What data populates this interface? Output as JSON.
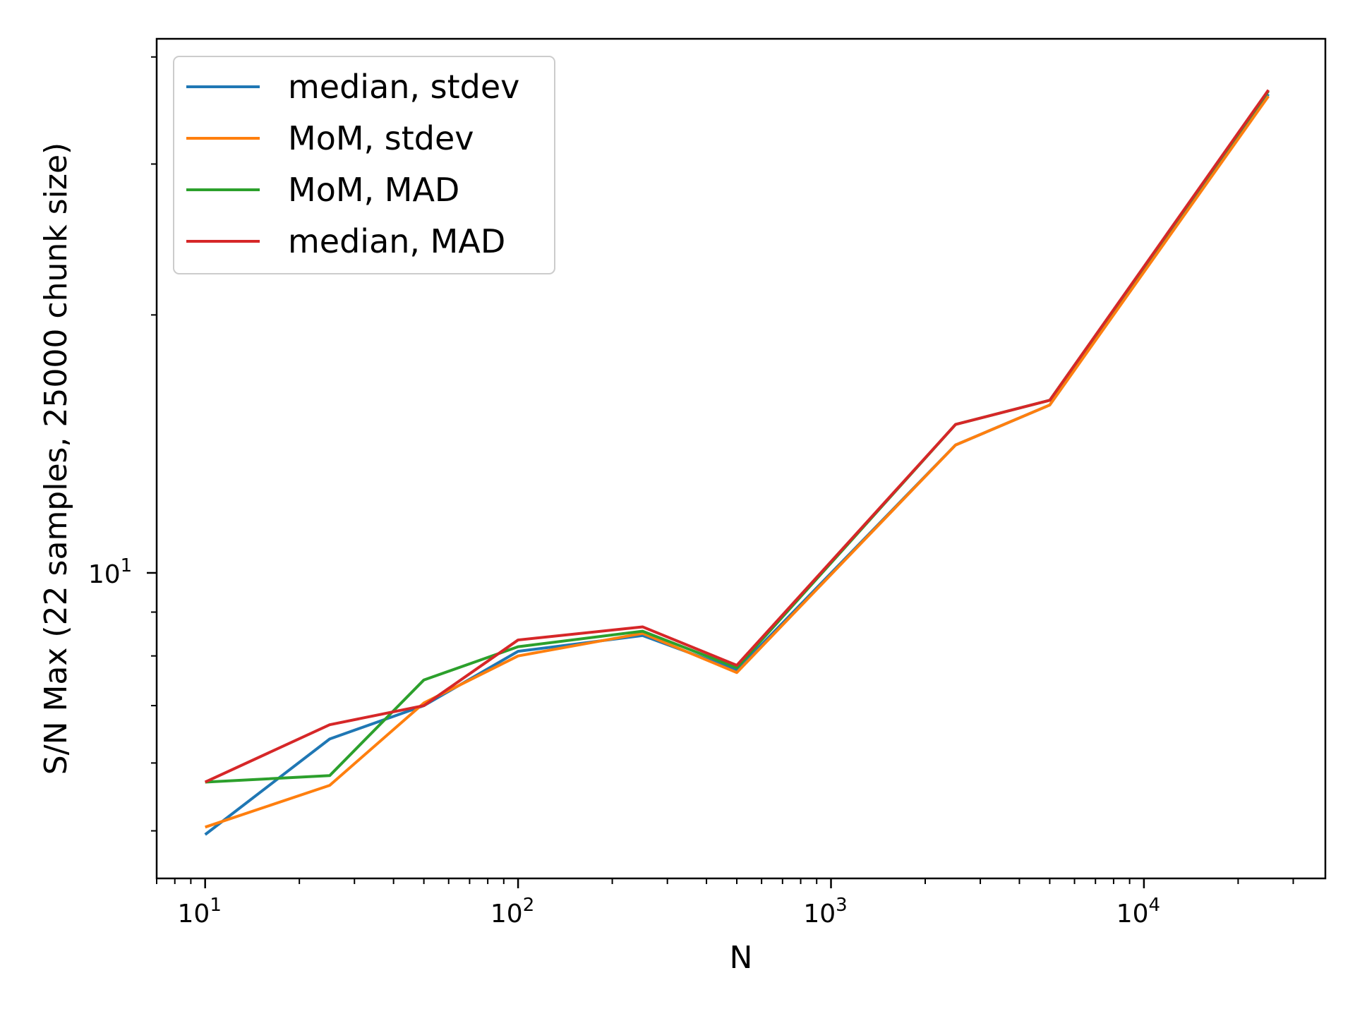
{
  "chart_data": {
    "type": "line",
    "xlabel": "N",
    "ylabel": "S/N Max (22 samples, 25000 chunk size)",
    "xscale": "log",
    "yscale": "log",
    "xlim": [
      7,
      38000
    ],
    "ylim": [
      4.4,
      42
    ],
    "grid": false,
    "legend_position": "top-left",
    "x_ticks": [
      {
        "value": 10,
        "base": "10",
        "exp": "1"
      },
      {
        "value": 100,
        "base": "10",
        "exp": "2"
      },
      {
        "value": 1000,
        "base": "10",
        "exp": "3"
      },
      {
        "value": 10000,
        "base": "10",
        "exp": "4"
      }
    ],
    "y_ticks": [
      {
        "value": 10,
        "base": "10",
        "exp": "1"
      }
    ],
    "x": [
      10,
      25,
      50,
      100,
      250,
      500,
      2500,
      5000,
      25000
    ],
    "series": [
      {
        "name": "median, stdev",
        "color": "#1f77b4",
        "values": [
          4.95,
          6.4,
          7.0,
          8.1,
          8.45,
          7.7,
          14.1,
          15.7,
          36.2
        ]
      },
      {
        "name": "MoM, stdev",
        "color": "#ff7f0e",
        "values": [
          5.05,
          5.65,
          7.05,
          8.0,
          8.5,
          7.65,
          14.1,
          15.7,
          36.0
        ]
      },
      {
        "name": "MoM, MAD",
        "color": "#2ca02c",
        "values": [
          5.7,
          5.8,
          7.5,
          8.2,
          8.55,
          7.75,
          14.9,
          15.9,
          36.5
        ]
      },
      {
        "name": "median, MAD",
        "color": "#d62728",
        "values": [
          5.7,
          6.65,
          7.0,
          8.35,
          8.65,
          7.8,
          14.9,
          15.9,
          36.6
        ]
      }
    ]
  }
}
